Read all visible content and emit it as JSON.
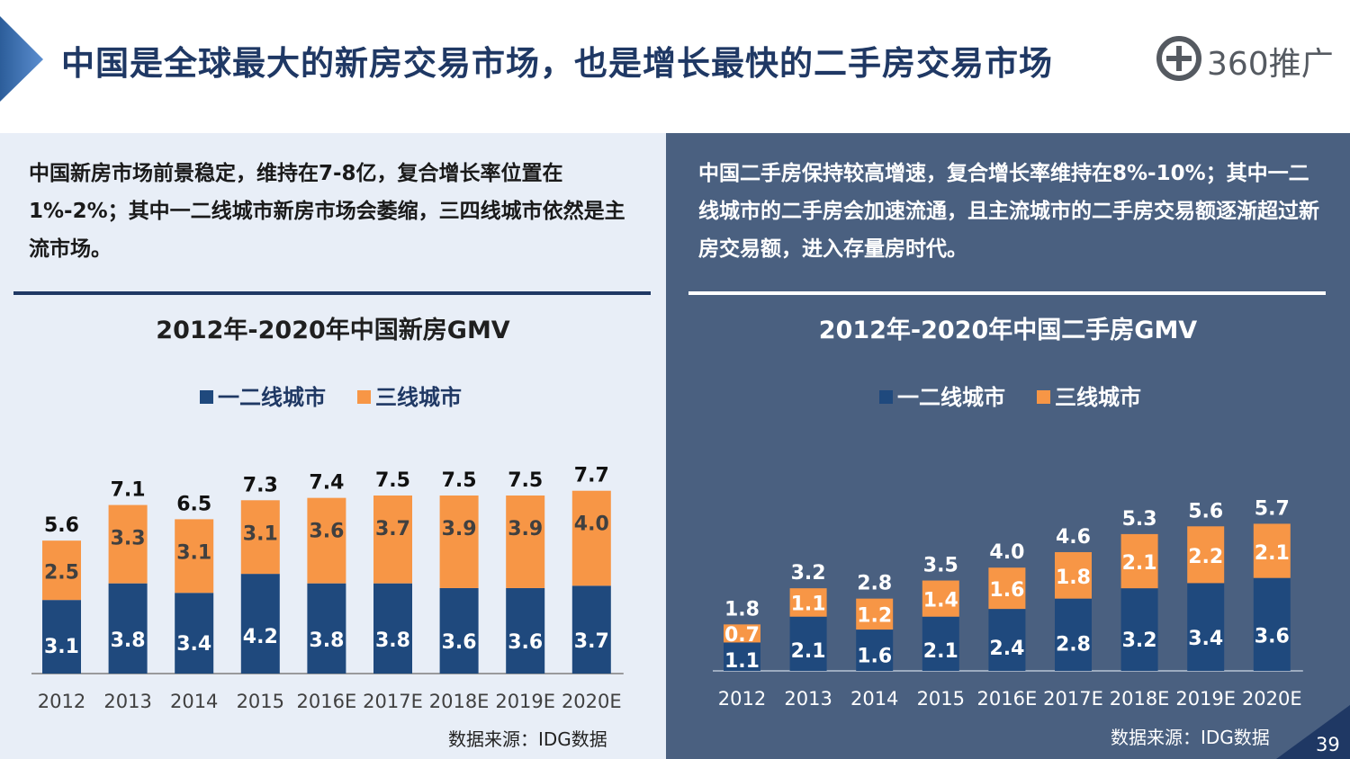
{
  "slide": {
    "title": "中国是全球最大的新房交易市场，也是增长最快的二手房交易市场",
    "logo_text": "360推广",
    "page_number": "39",
    "colors": {
      "tier12": "#1f497d",
      "tier3": "#f79646",
      "title": "#1f3864",
      "left_bg": "#e8eef7",
      "right_bg": "#4a6080"
    }
  },
  "left": {
    "description": "中国新房市场前景稳定，维持在7-8亿，复合增长率位置在1%-2%；其中一二线城市新房市场会萎缩，三四线城市依然是主流市场。",
    "source": "数据来源：IDG数据"
  },
  "right": {
    "description": "中国二手房保持较高增速，复合增长率维持在8%-10%；其中一二线城市的二手房会加速流通，且主流城市的二手房交易额逐渐超过新房交易额，进入存量房时代。",
    "source": "数据来源：IDG数据"
  },
  "chart_data": [
    {
      "type": "bar",
      "stacked": true,
      "title": "2012年-2020年中国新房GMV",
      "categories": [
        "2012",
        "2013",
        "2014",
        "2015",
        "2016E",
        "2017E",
        "2018E",
        "2019E",
        "2020E"
      ],
      "series": [
        {
          "name": "一二线城市",
          "color": "#1f497d",
          "values": [
            3.1,
            3.8,
            3.4,
            4.2,
            3.8,
            3.8,
            3.6,
            3.6,
            3.7
          ]
        },
        {
          "name": "三线城市",
          "color": "#f79646",
          "values": [
            2.5,
            3.3,
            3.1,
            3.1,
            3.6,
            3.7,
            3.9,
            3.9,
            4.0
          ]
        }
      ],
      "totals": [
        5.6,
        7.1,
        6.5,
        7.3,
        7.4,
        7.5,
        7.5,
        7.5,
        7.7
      ],
      "legend_position": "top"
    },
    {
      "type": "bar",
      "stacked": true,
      "title": "2012年-2020年中国二手房GMV",
      "categories": [
        "2012",
        "2013",
        "2014",
        "2015",
        "2016E",
        "2017E",
        "2018E",
        "2019E",
        "2020E"
      ],
      "series": [
        {
          "name": "一二线城市",
          "color": "#1f497d",
          "values": [
            1.1,
            2.1,
            1.6,
            2.1,
            2.4,
            2.8,
            3.2,
            3.4,
            3.6
          ]
        },
        {
          "name": "三线城市",
          "color": "#f79646",
          "values": [
            0.7,
            1.1,
            1.2,
            1.4,
            1.6,
            1.8,
            2.1,
            2.2,
            2.1
          ]
        }
      ],
      "totals": [
        1.8,
        3.2,
        2.8,
        3.5,
        4.0,
        4.6,
        5.3,
        5.6,
        5.7
      ],
      "legend_position": "top"
    }
  ]
}
